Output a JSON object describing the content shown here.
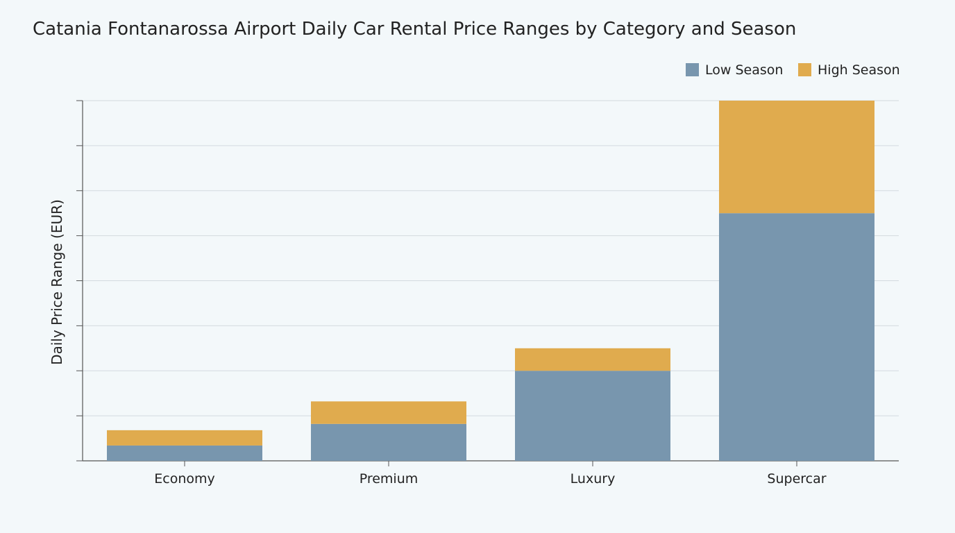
{
  "chart_data": {
    "type": "bar",
    "stacked": true,
    "title": "Catania Fontanarossa Airport Daily Car Rental Price Ranges by Category and Season",
    "xlabel": "",
    "ylabel": "Daily Price Range (EUR)",
    "categories": [
      "Economy",
      "Premium",
      "Luxury",
      "Supercar"
    ],
    "series": [
      {
        "name": "Low Season",
        "values": [
          17,
          41,
          100,
          275
        ],
        "color": "#7896ae"
      },
      {
        "name": "High Season",
        "values": [
          17,
          25,
          25,
          125
        ],
        "color": "#e0ab4e"
      }
    ],
    "ylim": [
      0,
      400
    ],
    "grid": true,
    "legend_position": "top-right"
  }
}
